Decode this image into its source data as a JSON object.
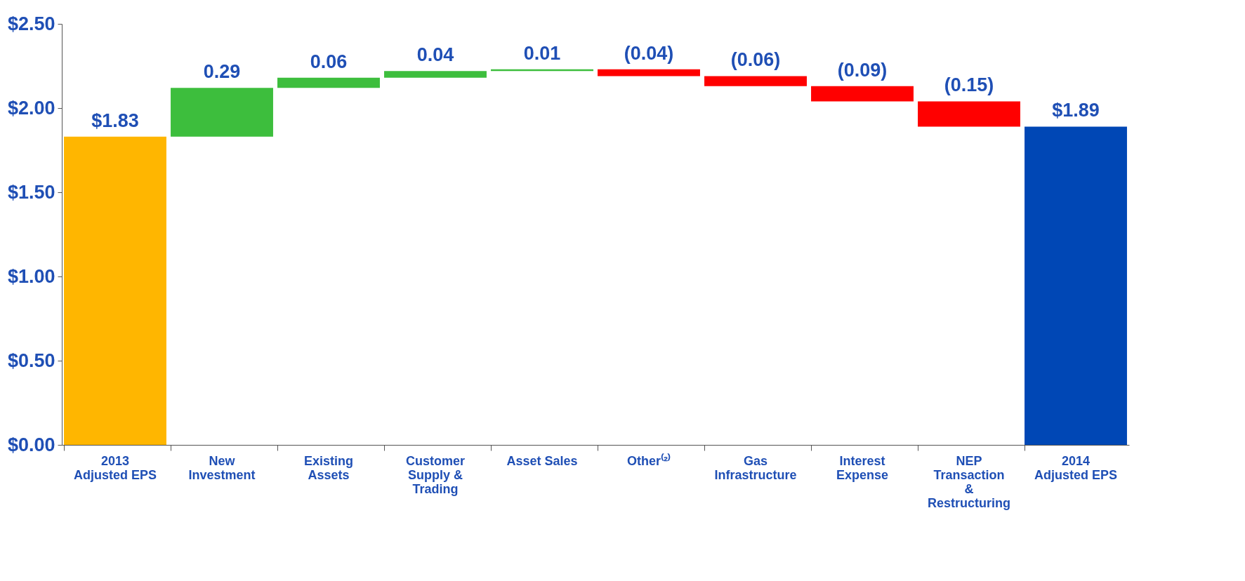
{
  "chart_data": {
    "type": "bar",
    "categories": [
      "2013 Adjusted EPS",
      "New Investment",
      "Existing Assets",
      "Customer Supply & Trading",
      "Asset Sales",
      "Other⁽²⁾",
      "Gas Infrastructure",
      "Interest Expense",
      "NEP Transaction & Restructuring",
      "2014 Adjusted EPS"
    ],
    "values": [
      1.83,
      0.29,
      0.06,
      0.04,
      0.01,
      -0.04,
      -0.06,
      -0.09,
      -0.15,
      1.89
    ],
    "base": [
      0,
      1.83,
      2.12,
      2.18,
      2.22,
      2.23,
      2.19,
      2.13,
      2.04,
      0
    ],
    "colors": [
      "#ffb600",
      "#3dbe3d",
      "#3dbe3d",
      "#3dbe3d",
      "#3dbe3d",
      "#ff0000",
      "#ff0000",
      "#ff0000",
      "#ff0000",
      "#0047b5"
    ],
    "value_labels": [
      "$1.83",
      "0.29",
      "0.06",
      "0.04",
      "0.01",
      "(0.04)",
      "(0.06)",
      "(0.09)",
      "(0.15)",
      "$1.89"
    ],
    "ylim": [
      0,
      2.5
    ],
    "yticks": [
      {
        "value": 0,
        "label": "$0.00"
      },
      {
        "value": 0.5,
        "label": "$0.50"
      },
      {
        "value": 1,
        "label": "$1.00"
      },
      {
        "value": 1.5,
        "label": "$1.50"
      },
      {
        "value": 2,
        "label": "$2.00"
      },
      {
        "value": 2.5,
        "label": "$2.50"
      }
    ],
    "grid": false
  }
}
